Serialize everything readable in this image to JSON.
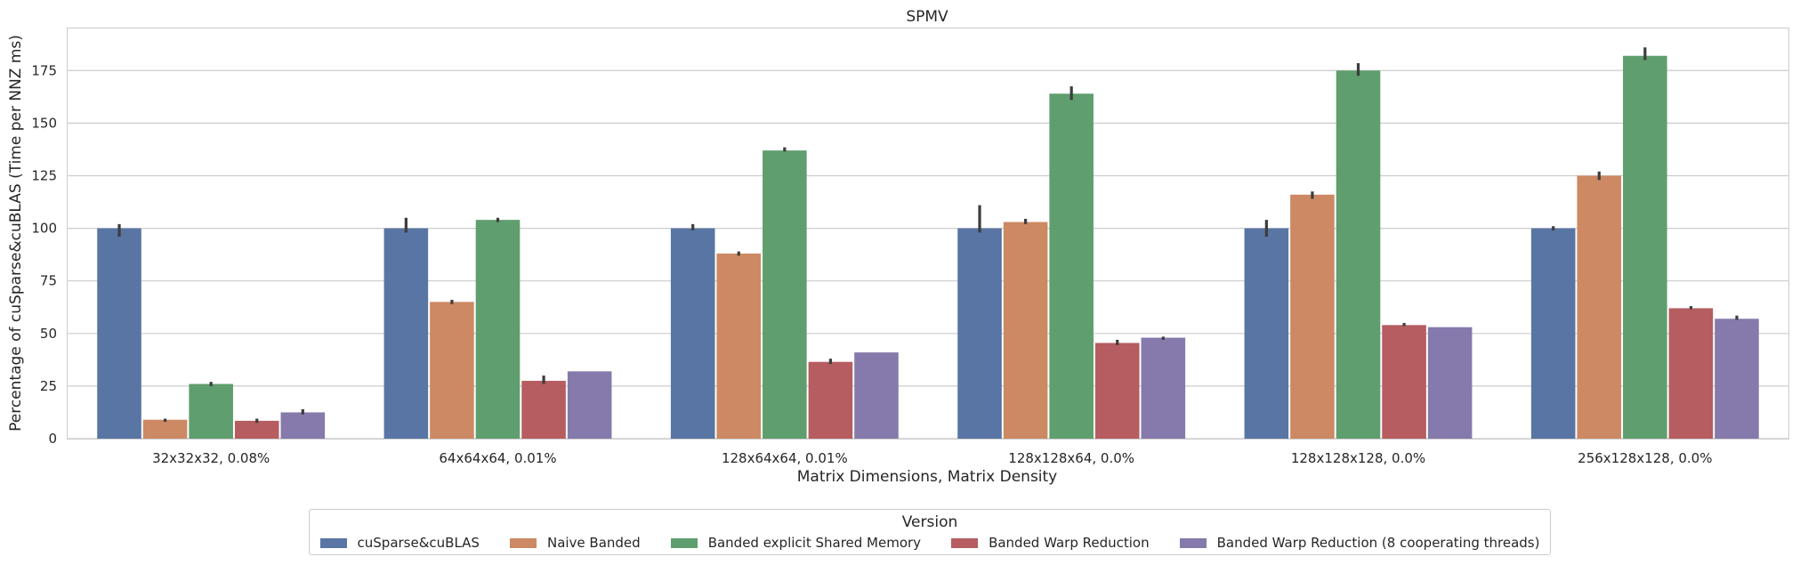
{
  "chart_data": {
    "type": "bar",
    "title": "SPMV",
    "xlabel": "Matrix Dimensions, Matrix Density",
    "ylabel": "Percentage of cuSparse&cuBLAS (Time per NNZ ms)",
    "ylim": [
      0,
      195
    ],
    "yticks": [
      0,
      25,
      50,
      75,
      100,
      125,
      150,
      175
    ],
    "grid": true,
    "legend_title": "Version",
    "legend_position": "bottom-center",
    "categories": [
      "32x32x32, 0.08%",
      "64x64x64, 0.01%",
      "128x64x64, 0.01%",
      "128x128x64, 0.0%",
      "128x128x128, 0.0%",
      "256x128x128, 0.0%"
    ],
    "series": [
      {
        "name": "cuSparse&cuBLAS",
        "color": "#5875a4",
        "values": [
          100,
          100,
          100,
          100,
          100,
          100
        ],
        "err_low": [
          96,
          98,
          99,
          98,
          96,
          99
        ],
        "err_high": [
          102,
          105,
          102,
          111,
          104,
          101
        ]
      },
      {
        "name": "Naive Banded",
        "color": "#cc8963",
        "values": [
          9,
          65,
          88,
          103,
          116,
          125
        ],
        "err_low": [
          8,
          64,
          87,
          102,
          114,
          123
        ],
        "err_high": [
          9.5,
          66,
          89,
          104.5,
          117.5,
          127
        ]
      },
      {
        "name": "Banded explicit Shared Memory",
        "color": "#5f9e6e",
        "values": [
          26,
          104,
          137,
          164,
          175,
          182
        ],
        "err_low": [
          25,
          103,
          136.5,
          161,
          172.5,
          180
        ],
        "err_high": [
          27,
          105,
          138.5,
          167.5,
          178.5,
          186
        ]
      },
      {
        "name": "Banded Warp Reduction",
        "color": "#b55d60",
        "values": [
          8.5,
          27.5,
          36.5,
          45.5,
          54,
          62
        ],
        "err_low": [
          7.5,
          26,
          35.5,
          44.5,
          53.5,
          61.5
        ],
        "err_high": [
          9.5,
          30,
          38,
          47,
          55,
          63
        ]
      },
      {
        "name": "Banded Warp Reduction (8 cooperating threads)",
        "color": "#857aab",
        "values": [
          12.5,
          32,
          41,
          48,
          53,
          57
        ],
        "err_low": [
          11.5,
          32,
          41,
          47,
          53,
          56.5
        ],
        "err_high": [
          14,
          32,
          41,
          48.5,
          53,
          58.5
        ]
      }
    ]
  }
}
